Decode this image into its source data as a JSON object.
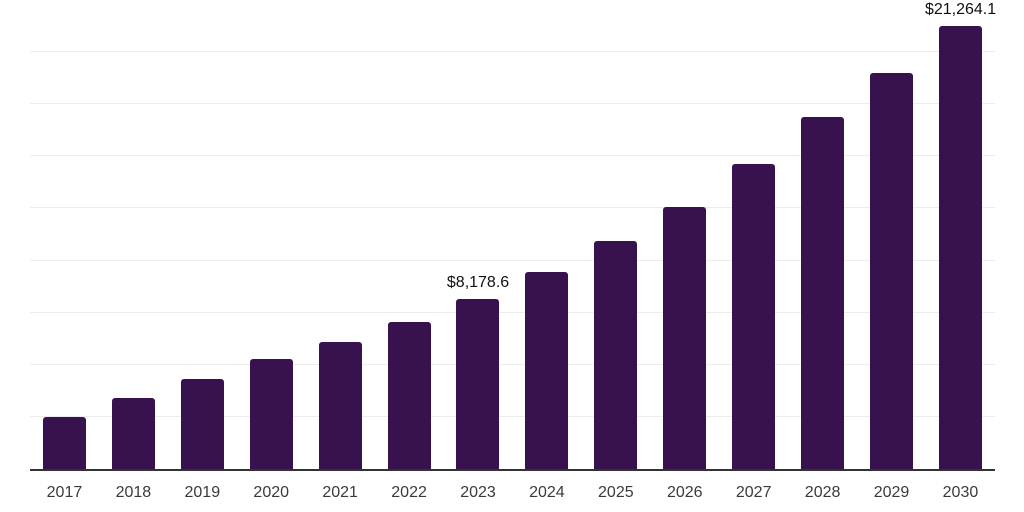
{
  "chart_data": {
    "type": "bar",
    "title": "",
    "xlabel": "",
    "ylabel": "",
    "categories": [
      "2017",
      "2018",
      "2019",
      "2020",
      "2021",
      "2022",
      "2023",
      "2024",
      "2025",
      "2026",
      "2027",
      "2028",
      "2029",
      "2030"
    ],
    "values": [
      2480,
      3390,
      4310,
      5270,
      6080,
      7050,
      8178.6,
      9450,
      10930,
      12590,
      14650,
      16900,
      19020,
      21264.1
    ],
    "data_labels": {
      "2023": "$8,178.6",
      "2030": "$21,264.1"
    },
    "ylim": [
      0,
      22500
    ],
    "gridline_interval": 2500,
    "grid": true,
    "legend": "none",
    "y_tick_labels_visible": false,
    "colors": {
      "bar": "#38124E",
      "axis_line": "#333333",
      "gridline": "#ececec",
      "tick_label": "#3a3a3a",
      "data_label": "#111111",
      "background": "#ffffff"
    }
  }
}
